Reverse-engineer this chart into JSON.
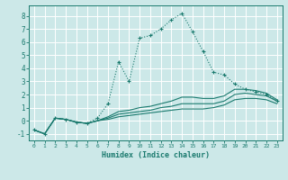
{
  "xlabel": "Humidex (Indice chaleur)",
  "bg_color": "#cce8e8",
  "grid_color": "#ffffff",
  "line_color": "#1a7a6e",
  "xlim": [
    -0.5,
    23.5
  ],
  "ylim": [
    -1.5,
    8.8
  ],
  "xticks": [
    0,
    1,
    2,
    3,
    4,
    5,
    6,
    7,
    8,
    9,
    10,
    11,
    12,
    13,
    14,
    15,
    16,
    17,
    18,
    19,
    20,
    21,
    22,
    23
  ],
  "yticks": [
    -1,
    0,
    1,
    2,
    3,
    4,
    5,
    6,
    7,
    8
  ],
  "series1_x": [
    0,
    1,
    2,
    3,
    4,
    5,
    6,
    7,
    8,
    9,
    10,
    11,
    12,
    13,
    14,
    15,
    16,
    17,
    18,
    19,
    20,
    21,
    22,
    23
  ],
  "series1_y": [
    -0.7,
    -1.0,
    0.2,
    0.1,
    -0.1,
    -0.2,
    0.2,
    1.3,
    4.5,
    3.0,
    6.3,
    6.5,
    7.0,
    7.7,
    8.2,
    6.8,
    5.3,
    3.7,
    3.5,
    2.8,
    2.4,
    2.2,
    2.0,
    1.5
  ],
  "series2_x": [
    0,
    1,
    2,
    3,
    4,
    5,
    6,
    7,
    8,
    9,
    10,
    11,
    12,
    13,
    14,
    15,
    16,
    17,
    18,
    19,
    20,
    21,
    22,
    23
  ],
  "series2_y": [
    -0.7,
    -1.0,
    0.2,
    0.1,
    -0.1,
    -0.2,
    0.0,
    0.3,
    0.7,
    0.8,
    1.0,
    1.1,
    1.3,
    1.5,
    1.8,
    1.8,
    1.7,
    1.7,
    1.9,
    2.4,
    2.4,
    2.3,
    2.1,
    1.6
  ],
  "series3_x": [
    0,
    1,
    2,
    3,
    4,
    5,
    6,
    7,
    8,
    9,
    10,
    11,
    12,
    13,
    14,
    15,
    16,
    17,
    18,
    19,
    20,
    21,
    22,
    23
  ],
  "series3_y": [
    -0.7,
    -1.0,
    0.2,
    0.1,
    -0.1,
    -0.2,
    0.0,
    0.2,
    0.5,
    0.6,
    0.7,
    0.8,
    1.0,
    1.1,
    1.3,
    1.3,
    1.3,
    1.3,
    1.5,
    2.0,
    2.1,
    2.0,
    1.9,
    1.5
  ],
  "series4_x": [
    0,
    1,
    2,
    3,
    4,
    5,
    6,
    7,
    8,
    9,
    10,
    11,
    12,
    13,
    14,
    15,
    16,
    17,
    18,
    19,
    20,
    21,
    22,
    23
  ],
  "series4_y": [
    -0.7,
    -1.0,
    0.2,
    0.1,
    -0.1,
    -0.2,
    0.0,
    0.1,
    0.3,
    0.4,
    0.5,
    0.6,
    0.7,
    0.8,
    0.9,
    0.9,
    0.9,
    1.0,
    1.2,
    1.6,
    1.7,
    1.7,
    1.6,
    1.3
  ]
}
